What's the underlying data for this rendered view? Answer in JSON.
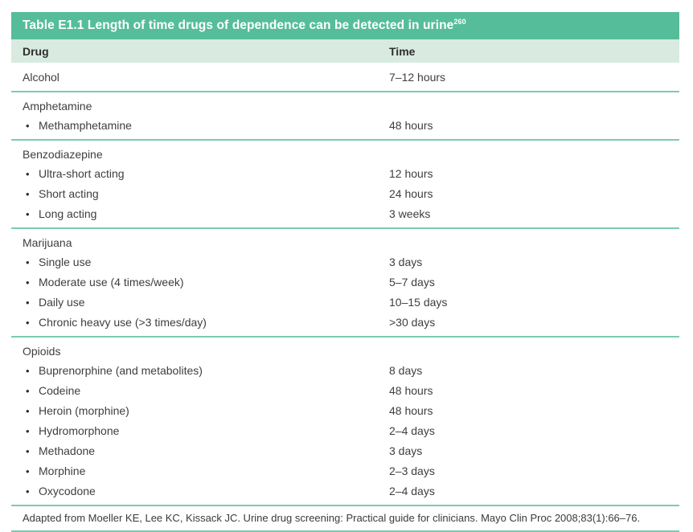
{
  "table": {
    "title": "Table E1.1 Length of time drugs of dependence can be detected in urine",
    "title_superscript": "260",
    "columns": [
      "Drug",
      "Time"
    ],
    "bullet_glyph": "•",
    "groups": [
      {
        "header": {
          "label": "Alcohol",
          "time": "7–12 hours"
        },
        "items": []
      },
      {
        "header": {
          "label": "Amphetamine",
          "time": ""
        },
        "items": [
          {
            "label": "Methamphetamine",
            "time": "48 hours"
          }
        ]
      },
      {
        "header": {
          "label": "Benzodiazepine",
          "time": ""
        },
        "items": [
          {
            "label": "Ultra-short acting",
            "time": "12 hours"
          },
          {
            "label": "Short acting",
            "time": "24 hours"
          },
          {
            "label": "Long acting",
            "time": "3 weeks"
          }
        ]
      },
      {
        "header": {
          "label": "Marijuana",
          "time": ""
        },
        "items": [
          {
            "label": "Single use",
            "time": "3 days"
          },
          {
            "label": "Moderate use (4 times/week)",
            "time": "5–7 days"
          },
          {
            "label": "Daily use",
            "time": "10–15 days"
          },
          {
            "label": "Chronic heavy use (>3 times/day)",
            "time": ">30 days"
          }
        ]
      },
      {
        "header": {
          "label": "Opioids",
          "time": ""
        },
        "items": [
          {
            "label": "Buprenorphine (and metabolites)",
            "time": "8 days"
          },
          {
            "label": "Codeine",
            "time": "48 hours"
          },
          {
            "label": "Heroin (morphine)",
            "time": "48 hours"
          },
          {
            "label": "Hydromorphone",
            "time": "2–4 days"
          },
          {
            "label": "Methadone",
            "time": "3 days"
          },
          {
            "label": "Morphine",
            "time": "2–3 days"
          },
          {
            "label": "Oxycodone",
            "time": "2–4 days"
          }
        ]
      }
    ],
    "footnote": "Adapted from Moeller KE, Lee KC, Kissack JC. Urine drug screening: Practical guide for clinicians. Mayo Clin Proc 2008;83(1):66–76.",
    "colors": {
      "title_bar_bg": "#56bd9a",
      "header_row_bg": "#d9eae1",
      "separator": "#7dcab0",
      "text": "#3e3e40",
      "title_text": "#ffffff"
    }
  }
}
